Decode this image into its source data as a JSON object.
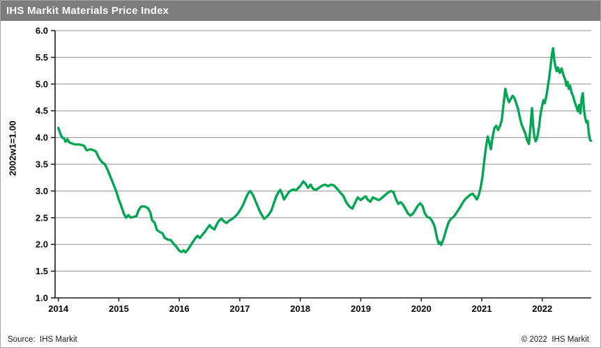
{
  "title_bar": {
    "title": "IHS Markit Materials Price Index"
  },
  "footer": {
    "source": "Source:  IHS Markit",
    "copyright": "© 2022  IHS Markit"
  },
  "colors": {
    "line_green": "#00a651",
    "titlebar_gray": "#7d7d7d",
    "gridline_gray": "#8f8f8f",
    "axis_black": "#1a1a1a",
    "frame_border": "#a3a3a3"
  },
  "chart_data": {
    "type": "line",
    "title": "IHS Markit Materials Price Index",
    "xlabel": "",
    "ylabel": "2002w1=1.00",
    "ylim": [
      1.0,
      6.0
    ],
    "xlim": [
      2013.946,
      2022.81
    ],
    "yticks": [
      "6.0",
      "5.5",
      "5.0",
      "4.5",
      "4.0",
      "3.5",
      "3.0",
      "2.5",
      "2.0",
      "1.5",
      "1.0"
    ],
    "xticks": [
      "2014",
      "2015",
      "2016",
      "2017",
      "2018",
      "2019",
      "2020",
      "2021",
      "2022"
    ],
    "grid": "horizontal",
    "legend": "none",
    "series": [
      {
        "name": "Materials Price Index",
        "color": "#00a651",
        "points": [
          [
            2014.0,
            4.18
          ],
          [
            2014.03,
            4.08
          ],
          [
            2014.06,
            4.0
          ],
          [
            2014.09,
            3.99
          ],
          [
            2014.12,
            3.92
          ],
          [
            2014.15,
            3.97
          ],
          [
            2014.18,
            3.91
          ],
          [
            2014.22,
            3.89
          ],
          [
            2014.28,
            3.87
          ],
          [
            2014.35,
            3.87
          ],
          [
            2014.42,
            3.85
          ],
          [
            2014.47,
            3.76
          ],
          [
            2014.52,
            3.78
          ],
          [
            2014.57,
            3.77
          ],
          [
            2014.62,
            3.74
          ],
          [
            2014.67,
            3.62
          ],
          [
            2014.72,
            3.54
          ],
          [
            2014.77,
            3.5
          ],
          [
            2014.82,
            3.38
          ],
          [
            2014.87,
            3.24
          ],
          [
            2014.92,
            3.1
          ],
          [
            2014.96,
            2.98
          ],
          [
            2015.0,
            2.84
          ],
          [
            2015.04,
            2.72
          ],
          [
            2015.08,
            2.58
          ],
          [
            2015.12,
            2.5
          ],
          [
            2015.16,
            2.55
          ],
          [
            2015.2,
            2.5
          ],
          [
            2015.25,
            2.52
          ],
          [
            2015.29,
            2.53
          ],
          [
            2015.33,
            2.65
          ],
          [
            2015.37,
            2.71
          ],
          [
            2015.43,
            2.71
          ],
          [
            2015.48,
            2.68
          ],
          [
            2015.52,
            2.6
          ],
          [
            2015.55,
            2.45
          ],
          [
            2015.59,
            2.41
          ],
          [
            2015.63,
            2.27
          ],
          [
            2015.68,
            2.23
          ],
          [
            2015.72,
            2.21
          ],
          [
            2015.76,
            2.12
          ],
          [
            2015.81,
            2.09
          ],
          [
            2015.86,
            2.08
          ],
          [
            2015.9,
            2.02
          ],
          [
            2015.95,
            1.96
          ],
          [
            2016.0,
            1.88
          ],
          [
            2016.04,
            1.86
          ],
          [
            2016.07,
            1.89
          ],
          [
            2016.1,
            1.85
          ],
          [
            2016.14,
            1.9
          ],
          [
            2016.18,
            1.97
          ],
          [
            2016.22,
            2.04
          ],
          [
            2016.26,
            2.11
          ],
          [
            2016.3,
            2.16
          ],
          [
            2016.34,
            2.12
          ],
          [
            2016.38,
            2.18
          ],
          [
            2016.42,
            2.23
          ],
          [
            2016.46,
            2.3
          ],
          [
            2016.5,
            2.36
          ],
          [
            2016.54,
            2.31
          ],
          [
            2016.58,
            2.28
          ],
          [
            2016.62,
            2.38
          ],
          [
            2016.66,
            2.45
          ],
          [
            2016.7,
            2.48
          ],
          [
            2016.74,
            2.43
          ],
          [
            2016.78,
            2.4
          ],
          [
            2016.83,
            2.45
          ],
          [
            2016.88,
            2.48
          ],
          [
            2016.93,
            2.53
          ],
          [
            2016.97,
            2.58
          ],
          [
            2017.01,
            2.65
          ],
          [
            2017.05,
            2.73
          ],
          [
            2017.09,
            2.84
          ],
          [
            2017.13,
            2.94
          ],
          [
            2017.17,
            3.0
          ],
          [
            2017.21,
            2.94
          ],
          [
            2017.25,
            2.84
          ],
          [
            2017.29,
            2.73
          ],
          [
            2017.33,
            2.62
          ],
          [
            2017.36,
            2.56
          ],
          [
            2017.4,
            2.48
          ],
          [
            2017.44,
            2.51
          ],
          [
            2017.48,
            2.56
          ],
          [
            2017.52,
            2.63
          ],
          [
            2017.56,
            2.76
          ],
          [
            2017.6,
            2.89
          ],
          [
            2017.64,
            2.98
          ],
          [
            2017.67,
            3.02
          ],
          [
            2017.7,
            2.94
          ],
          [
            2017.73,
            2.84
          ],
          [
            2017.77,
            2.91
          ],
          [
            2017.81,
            2.98
          ],
          [
            2017.85,
            3.01
          ],
          [
            2017.89,
            3.03
          ],
          [
            2017.93,
            3.01
          ],
          [
            2017.97,
            3.06
          ],
          [
            2018.01,
            3.11
          ],
          [
            2018.05,
            3.18
          ],
          [
            2018.09,
            3.13
          ],
          [
            2018.13,
            3.06
          ],
          [
            2018.17,
            3.12
          ],
          [
            2018.21,
            3.04
          ],
          [
            2018.26,
            3.02
          ],
          [
            2018.31,
            3.06
          ],
          [
            2018.36,
            3.1
          ],
          [
            2018.41,
            3.12
          ],
          [
            2018.46,
            3.09
          ],
          [
            2018.51,
            3.12
          ],
          [
            2018.56,
            3.1
          ],
          [
            2018.61,
            3.04
          ],
          [
            2018.66,
            2.97
          ],
          [
            2018.71,
            2.91
          ],
          [
            2018.76,
            2.79
          ],
          [
            2018.81,
            2.71
          ],
          [
            2018.86,
            2.67
          ],
          [
            2018.91,
            2.79
          ],
          [
            2018.95,
            2.88
          ],
          [
            2019.0,
            2.83
          ],
          [
            2019.04,
            2.87
          ],
          [
            2019.08,
            2.9
          ],
          [
            2019.12,
            2.83
          ],
          [
            2019.16,
            2.8
          ],
          [
            2019.2,
            2.88
          ],
          [
            2019.25,
            2.85
          ],
          [
            2019.3,
            2.83
          ],
          [
            2019.35,
            2.87
          ],
          [
            2019.4,
            2.92
          ],
          [
            2019.45,
            2.97
          ],
          [
            2019.5,
            3.0
          ],
          [
            2019.54,
            2.98
          ],
          [
            2019.58,
            2.85
          ],
          [
            2019.62,
            2.76
          ],
          [
            2019.66,
            2.79
          ],
          [
            2019.7,
            2.74
          ],
          [
            2019.74,
            2.66
          ],
          [
            2019.78,
            2.58
          ],
          [
            2019.82,
            2.54
          ],
          [
            2019.86,
            2.57
          ],
          [
            2019.9,
            2.64
          ],
          [
            2019.94,
            2.72
          ],
          [
            2019.98,
            2.77
          ],
          [
            2020.02,
            2.72
          ],
          [
            2020.06,
            2.58
          ],
          [
            2020.1,
            2.51
          ],
          [
            2020.14,
            2.5
          ],
          [
            2020.18,
            2.44
          ],
          [
            2020.22,
            2.34
          ],
          [
            2020.26,
            2.12
          ],
          [
            2020.29,
            2.01
          ],
          [
            2020.31,
            2.04
          ],
          [
            2020.33,
            1.99
          ],
          [
            2020.37,
            2.11
          ],
          [
            2020.41,
            2.27
          ],
          [
            2020.45,
            2.41
          ],
          [
            2020.49,
            2.48
          ],
          [
            2020.53,
            2.51
          ],
          [
            2020.57,
            2.57
          ],
          [
            2020.61,
            2.64
          ],
          [
            2020.65,
            2.71
          ],
          [
            2020.69,
            2.79
          ],
          [
            2020.73,
            2.85
          ],
          [
            2020.77,
            2.89
          ],
          [
            2020.81,
            2.93
          ],
          [
            2020.85,
            2.95
          ],
          [
            2020.89,
            2.89
          ],
          [
            2020.92,
            2.84
          ],
          [
            2020.95,
            2.92
          ],
          [
            2020.98,
            3.05
          ],
          [
            2021.01,
            3.25
          ],
          [
            2021.04,
            3.55
          ],
          [
            2021.07,
            3.82
          ],
          [
            2021.1,
            4.02
          ],
          [
            2021.13,
            3.88
          ],
          [
            2021.15,
            3.78
          ],
          [
            2021.18,
            4.02
          ],
          [
            2021.21,
            4.18
          ],
          [
            2021.24,
            4.22
          ],
          [
            2021.27,
            4.14
          ],
          [
            2021.3,
            4.21
          ],
          [
            2021.33,
            4.32
          ],
          [
            2021.36,
            4.62
          ],
          [
            2021.39,
            4.91
          ],
          [
            2021.42,
            4.76
          ],
          [
            2021.45,
            4.66
          ],
          [
            2021.48,
            4.72
          ],
          [
            2021.51,
            4.78
          ],
          [
            2021.54,
            4.74
          ],
          [
            2021.57,
            4.64
          ],
          [
            2021.6,
            4.54
          ],
          [
            2021.63,
            4.37
          ],
          [
            2021.66,
            4.24
          ],
          [
            2021.69,
            4.16
          ],
          [
            2021.72,
            4.08
          ],
          [
            2021.75,
            3.95
          ],
          [
            2021.78,
            3.88
          ],
          [
            2021.81,
            4.25
          ],
          [
            2021.83,
            4.55
          ],
          [
            2021.85,
            4.22
          ],
          [
            2021.87,
            4.02
          ],
          [
            2021.89,
            3.93
          ],
          [
            2021.91,
            3.97
          ],
          [
            2021.93,
            4.08
          ],
          [
            2021.95,
            4.22
          ],
          [
            2021.97,
            4.42
          ],
          [
            2022.0,
            4.6
          ],
          [
            2022.02,
            4.7
          ],
          [
            2022.04,
            4.64
          ],
          [
            2022.06,
            4.73
          ],
          [
            2022.08,
            4.86
          ],
          [
            2022.1,
            5.01
          ],
          [
            2022.12,
            5.16
          ],
          [
            2022.14,
            5.36
          ],
          [
            2022.16,
            5.56
          ],
          [
            2022.18,
            5.67
          ],
          [
            2022.2,
            5.44
          ],
          [
            2022.22,
            5.32
          ],
          [
            2022.24,
            5.24
          ],
          [
            2022.26,
            5.31
          ],
          [
            2022.29,
            5.21
          ],
          [
            2022.32,
            5.29
          ],
          [
            2022.35,
            5.17
          ],
          [
            2022.38,
            5.08
          ],
          [
            2022.4,
            4.97
          ],
          [
            2022.42,
            5.04
          ],
          [
            2022.44,
            4.91
          ],
          [
            2022.46,
            4.97
          ],
          [
            2022.48,
            4.86
          ],
          [
            2022.51,
            4.77
          ],
          [
            2022.54,
            4.65
          ],
          [
            2022.57,
            4.56
          ],
          [
            2022.59,
            4.49
          ],
          [
            2022.61,
            4.61
          ],
          [
            2022.63,
            4.45
          ],
          [
            2022.65,
            4.72
          ],
          [
            2022.67,
            4.83
          ],
          [
            2022.69,
            4.52
          ],
          [
            2022.71,
            4.37
          ],
          [
            2022.73,
            4.28
          ],
          [
            2022.75,
            4.31
          ],
          [
            2022.77,
            4.08
          ],
          [
            2022.79,
            3.95
          ],
          [
            2022.805,
            3.94
          ]
        ]
      }
    ]
  }
}
